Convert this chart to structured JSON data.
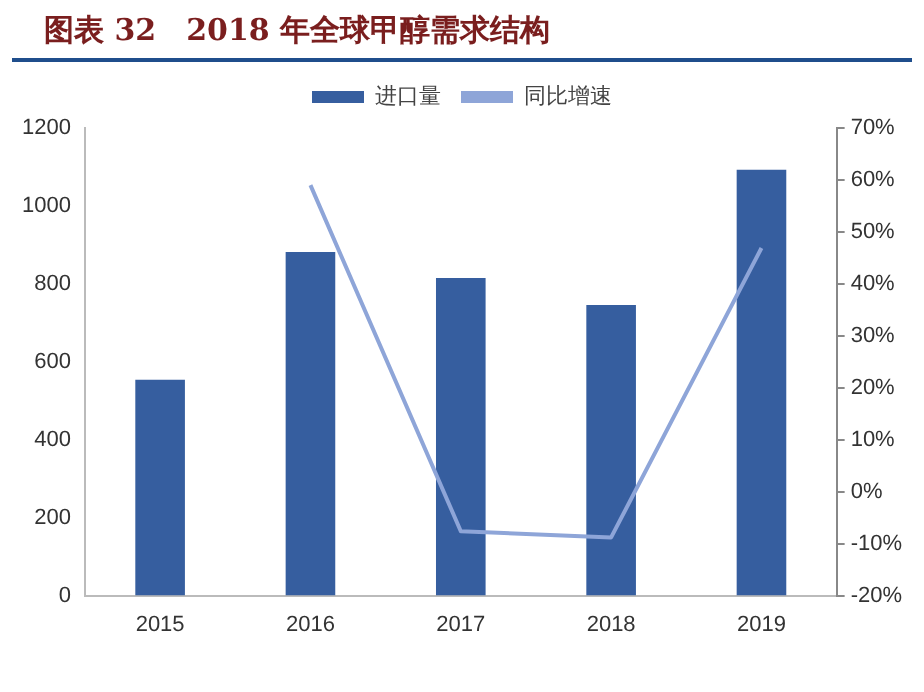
{
  "chart_data": {
    "type": "bar",
    "title": "图表 32　2018 年全球甲醇需求结构",
    "categories": [
      "2015",
      "2016",
      "2017",
      "2018",
      "2019"
    ],
    "series": [
      {
        "name": "进口量",
        "color": "#365e9f",
        "values": [
          554,
          882,
          815,
          746,
          1093
        ]
      },
      {
        "name": "同比增速",
        "type": "line",
        "axis": "y2",
        "color": "#8ea5d8",
        "values": [
          null,
          59,
          -7.6,
          -8.8,
          46.9
        ]
      }
    ],
    "ylim": [
      0,
      1200
    ],
    "yticks": [
      0,
      200,
      400,
      600,
      800,
      1000,
      1200
    ],
    "y2lim": [
      -20,
      70
    ],
    "y2ticks": [
      {
        "value": -20,
        "label": "-20%"
      },
      {
        "value": -10,
        "label": "-10%"
      },
      {
        "value": 0,
        "label": "0%"
      },
      {
        "value": 10,
        "label": "10%"
      },
      {
        "value": 20,
        "label": "20%"
      },
      {
        "value": 30,
        "label": "30%"
      },
      {
        "value": 40,
        "label": "40%"
      },
      {
        "value": 50,
        "label": "50%"
      },
      {
        "value": 60,
        "label": "60%"
      },
      {
        "value": 70,
        "label": "70%"
      }
    ],
    "grid": false,
    "legend": "top",
    "marker": "none"
  }
}
